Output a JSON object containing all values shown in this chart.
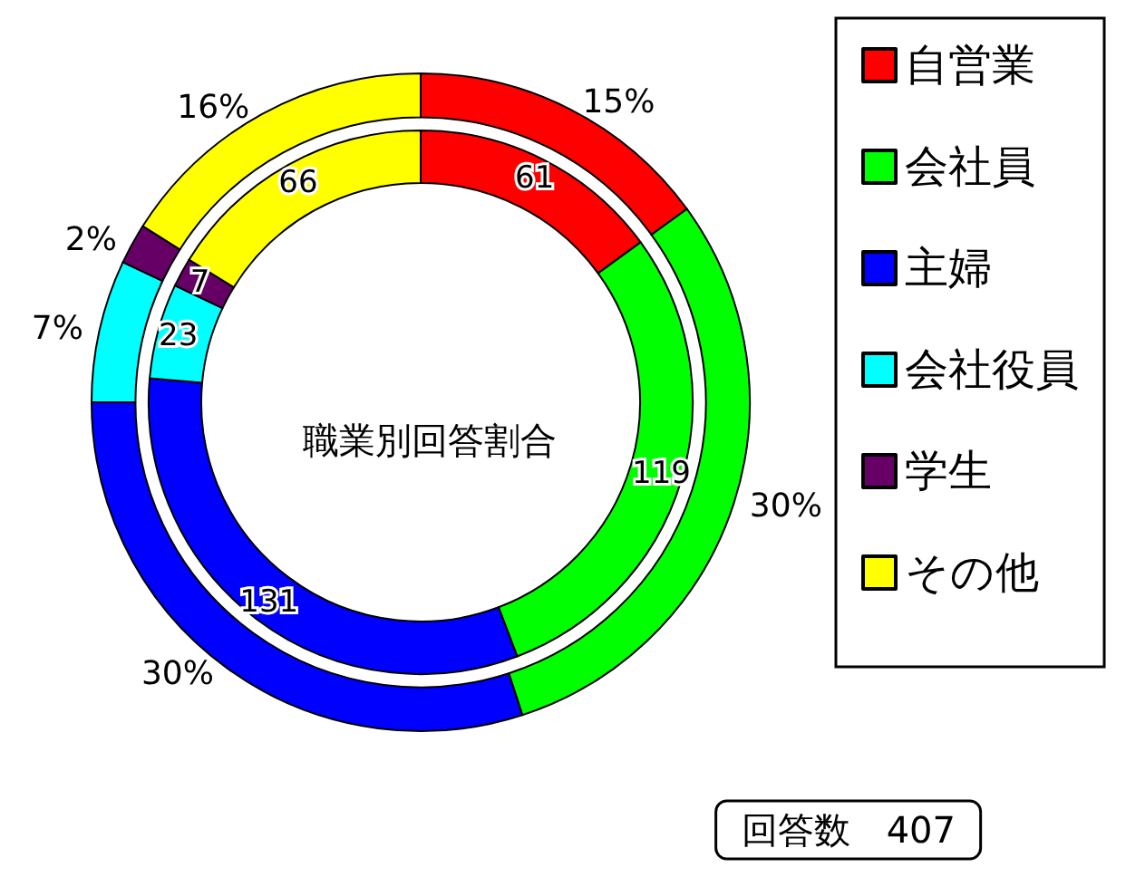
{
  "chart_data": {
    "type": "donut",
    "title": "職業別回答割合",
    "categories": [
      "自営業",
      "会社員",
      "主婦",
      "会社役員",
      "学生",
      "その他"
    ],
    "colors": [
      "#ff0000",
      "#00ff00",
      "#0000ff",
      "#00ffff",
      "#660066",
      "#ffff00"
    ],
    "series": [
      {
        "values": [
          61,
          119,
          131,
          23,
          7,
          66
        ],
        "value_labels": [
          "61",
          "119",
          "131",
          "23",
          "7",
          "66"
        ]
      },
      {
        "values": [
          15,
          30,
          30,
          7,
          2,
          16
        ],
        "value_labels": [
          "15%",
          "30%",
          "30%",
          "7%",
          "2%",
          "16%"
        ]
      }
    ],
    "legend": "right",
    "annotations": [
      "回答数　407"
    ]
  }
}
